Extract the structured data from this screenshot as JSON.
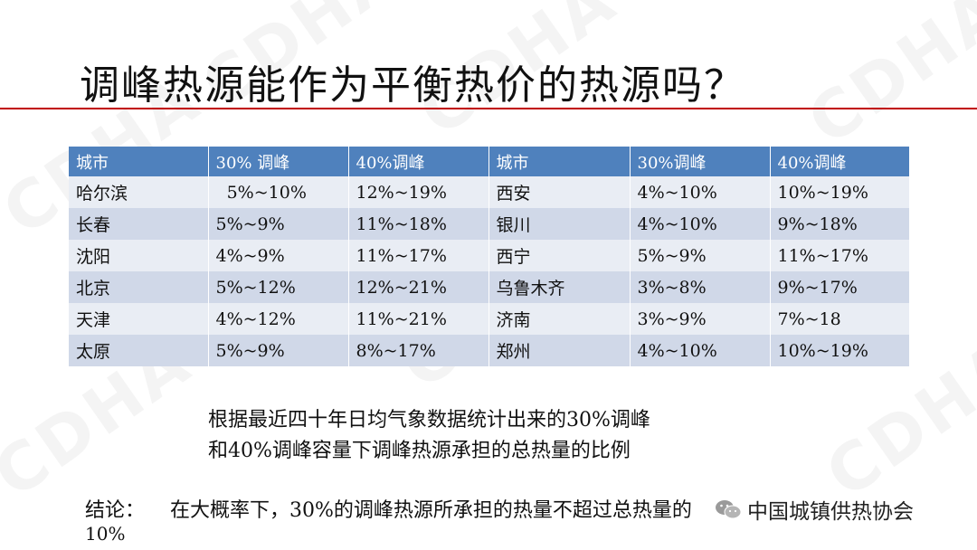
{
  "watermark": "CDHA",
  "title": "调峰热源能作为平衡热价的热源吗？",
  "table": {
    "headers": [
      "城市",
      "30% 调峰",
      "40%调峰",
      "城市",
      "30%调峰",
      "40%调峰"
    ],
    "rows": [
      [
        "哈尔滨",
        "  5%~10%",
        "12%~19%",
        "西安",
        "4%~10%",
        "10%~19%"
      ],
      [
        "长春",
        "5%~9%",
        "11%~18%",
        "银川",
        "4%~10%",
        "9%~18%"
      ],
      [
        "沈阳",
        "4%~9%",
        "11%~17%",
        "西宁",
        "5%~9%",
        "11%~17%"
      ],
      [
        "北京",
        "5%~12%",
        "12%~21%",
        "乌鲁木齐",
        "3%~8%",
        "9%~17%"
      ],
      [
        "天津",
        "4%~12%",
        "11%~21%",
        "济南",
        "3%~9%",
        "7%~18"
      ],
      [
        "太原",
        "5%~9%",
        "8%~17%",
        "郑州",
        "4%~10%",
        "10%~19%"
      ]
    ]
  },
  "note": {
    "line1": "根据最近四十年日均气象数据统计出来的30%调峰",
    "line2": "和40%调峰容量下调峰热源承担的总热量的比例"
  },
  "conclusion": {
    "label": "结论：",
    "text": "在大概率下，30%的调峰热源所承担的热量不超过总热量的",
    "tail": "10%"
  },
  "wechat_badge": {
    "text": "中国城镇供热协会",
    "icon": "wechat-icon"
  },
  "colors": {
    "header_bg": "#4f81bd",
    "row_light": "#e9edf4",
    "row_dark": "#d0d8e8",
    "rule": "#c00000"
  }
}
